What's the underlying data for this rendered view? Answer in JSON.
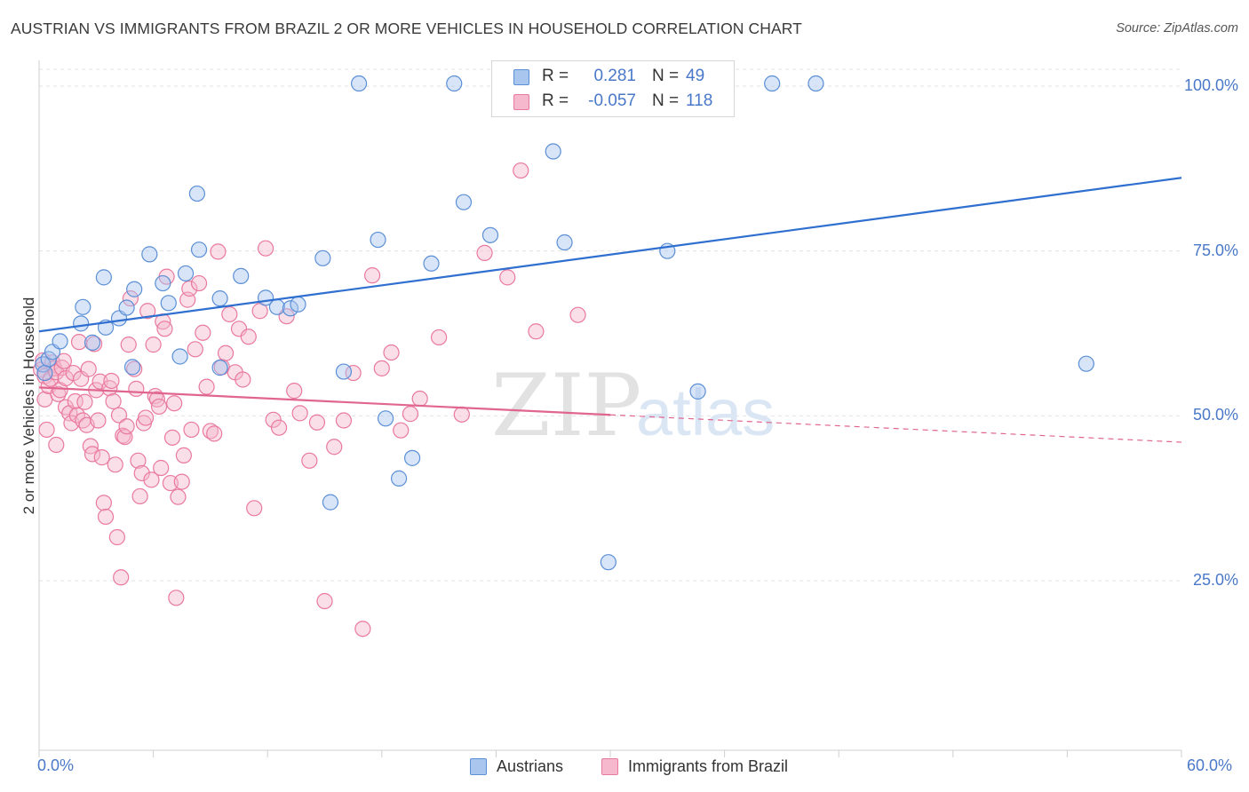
{
  "header": {
    "title": "AUSTRIAN VS IMMIGRANTS FROM BRAZIL 2 OR MORE VEHICLES IN HOUSEHOLD CORRELATION CHART",
    "source": "Source: ZipAtlas.com"
  },
  "watermark": {
    "zip": "ZIP",
    "atlas": "atlas"
  },
  "legend_top": {
    "rows": [
      {
        "r_label": "R =",
        "r_value": "0.281",
        "n_label": "N =",
        "n_value": "49"
      },
      {
        "r_label": "R =",
        "r_value": "-0.057",
        "n_label": "N =",
        "n_value": "118"
      }
    ]
  },
  "colors": {
    "austrians_fill": "#a9c6ef",
    "austrians_stroke": "#5b8fd6",
    "austrians_line": "#2f6fd0",
    "brazil_fill": "#f5b8cd",
    "brazil_stroke": "#e9799f",
    "brazil_line": "#e0668f",
    "tick_text": "#4a78c8",
    "grid": "#e3e3e3"
  },
  "chart_data": {
    "type": "scatter",
    "title": "AUSTRIAN VS IMMIGRANTS FROM BRAZIL 2 OR MORE VEHICLES IN HOUSEHOLD CORRELATION CHART",
    "xlabel": "",
    "ylabel": "2 or more Vehicles in Household",
    "xlim": [
      0,
      60
    ],
    "ylim": [
      0,
      105
    ],
    "x_tick_labels": [
      "0.0%",
      "60.0%"
    ],
    "y_ticks": [
      {
        "value": 100,
        "label": "100.0%"
      },
      {
        "value": 75,
        "label": "75.0%"
      },
      {
        "value": 50,
        "label": "50.0%"
      },
      {
        "value": 25,
        "label": "25.0%"
      }
    ],
    "grid": true,
    "legend_position": "bottom",
    "series": [
      {
        "name": "Austrians",
        "color": "#a9c6ef",
        "r": 0.281,
        "n": 49,
        "trend": {
          "x": [
            0,
            60
          ],
          "y": [
            62.8,
            86.1
          ],
          "dashed_from_x": null
        },
        "points": [
          [
            0.2,
            57.8
          ],
          [
            0.3,
            56.5
          ],
          [
            0.5,
            58.6
          ],
          [
            0.7,
            59.7
          ],
          [
            1.1,
            61.3
          ],
          [
            2.3,
            66.5
          ],
          [
            2.2,
            64.0
          ],
          [
            2.8,
            61.1
          ],
          [
            3.4,
            71.0
          ],
          [
            3.5,
            63.4
          ],
          [
            4.2,
            64.8
          ],
          [
            4.6,
            66.4
          ],
          [
            5.0,
            69.2
          ],
          [
            5.8,
            74.5
          ],
          [
            6.5,
            70.1
          ],
          [
            6.8,
            67.1
          ],
          [
            7.4,
            59.0
          ],
          [
            7.7,
            71.6
          ],
          [
            8.4,
            75.2
          ],
          [
            8.3,
            83.7
          ],
          [
            9.5,
            67.8
          ],
          [
            9.5,
            57.3
          ],
          [
            10.6,
            71.2
          ],
          [
            11.9,
            67.9
          ],
          [
            12.5,
            66.5
          ],
          [
            13.2,
            66.3
          ],
          [
            13.6,
            66.9
          ],
          [
            14.9,
            73.9
          ],
          [
            16.0,
            56.7
          ],
          [
            16.8,
            100.4
          ],
          [
            17.8,
            76.7
          ],
          [
            18.2,
            49.6
          ],
          [
            18.9,
            40.5
          ],
          [
            19.6,
            43.6
          ],
          [
            20.6,
            73.1
          ],
          [
            21.8,
            100.4
          ],
          [
            22.3,
            82.4
          ],
          [
            23.7,
            77.4
          ],
          [
            27.0,
            90.1
          ],
          [
            27.6,
            76.3
          ],
          [
            29.9,
            27.8
          ],
          [
            30.4,
            100.4
          ],
          [
            33.0,
            75.0
          ],
          [
            34.6,
            53.7
          ],
          [
            38.5,
            100.4
          ],
          [
            40.8,
            100.4
          ],
          [
            55.0,
            57.9
          ],
          [
            4.9,
            57.4
          ],
          [
            15.3,
            36.9
          ]
        ]
      },
      {
        "name": "Immigrants from Brazil",
        "color": "#f5b8cd",
        "r": -0.057,
        "n": 118,
        "trend": {
          "x": [
            0,
            60
          ],
          "y": [
            54.3,
            46.0
          ],
          "dashed_from_x": 30
        },
        "points": [
          [
            0.1,
            57.0
          ],
          [
            0.2,
            58.4
          ],
          [
            0.3,
            56.0
          ],
          [
            0.3,
            52.5
          ],
          [
            0.4,
            47.9
          ],
          [
            0.5,
            54.5
          ],
          [
            0.6,
            55.6
          ],
          [
            0.7,
            58.1
          ],
          [
            0.8,
            57.2
          ],
          [
            0.9,
            56.6
          ],
          [
            0.9,
            45.6
          ],
          [
            1.0,
            53.3
          ],
          [
            1.1,
            53.9
          ],
          [
            1.2,
            57.3
          ],
          [
            1.3,
            58.3
          ],
          [
            1.4,
            55.7
          ],
          [
            1.4,
            51.3
          ],
          [
            1.6,
            50.4
          ],
          [
            1.7,
            48.9
          ],
          [
            1.8,
            56.5
          ],
          [
            1.9,
            52.2
          ],
          [
            2.0,
            50.1
          ],
          [
            2.1,
            61.2
          ],
          [
            2.2,
            55.6
          ],
          [
            2.3,
            49.3
          ],
          [
            2.4,
            52.1
          ],
          [
            2.5,
            48.6
          ],
          [
            2.6,
            57.1
          ],
          [
            2.7,
            45.4
          ],
          [
            2.8,
            44.2
          ],
          [
            2.9,
            60.9
          ],
          [
            3.0,
            53.9
          ],
          [
            3.1,
            49.3
          ],
          [
            3.2,
            55.2
          ],
          [
            3.3,
            43.7
          ],
          [
            3.4,
            36.8
          ],
          [
            3.5,
            34.7
          ],
          [
            3.7,
            54.2
          ],
          [
            3.8,
            55.3
          ],
          [
            3.9,
            52.2
          ],
          [
            4.0,
            42.6
          ],
          [
            4.1,
            31.6
          ],
          [
            4.2,
            50.1
          ],
          [
            4.3,
            25.5
          ],
          [
            4.4,
            47.0
          ],
          [
            4.5,
            46.8
          ],
          [
            4.6,
            48.4
          ],
          [
            4.7,
            60.8
          ],
          [
            4.8,
            67.8
          ],
          [
            5.0,
            57.1
          ],
          [
            5.1,
            54.1
          ],
          [
            5.2,
            43.2
          ],
          [
            5.3,
            37.8
          ],
          [
            5.4,
            41.3
          ],
          [
            5.5,
            48.9
          ],
          [
            5.6,
            49.7
          ],
          [
            5.7,
            65.9
          ],
          [
            5.9,
            40.3
          ],
          [
            6.0,
            60.8
          ],
          [
            6.1,
            53.0
          ],
          [
            6.2,
            52.5
          ],
          [
            6.3,
            51.4
          ],
          [
            6.4,
            42.1
          ],
          [
            6.5,
            64.3
          ],
          [
            6.6,
            63.2
          ],
          [
            6.7,
            71.1
          ],
          [
            6.9,
            39.8
          ],
          [
            7.0,
            46.7
          ],
          [
            7.1,
            51.9
          ],
          [
            7.2,
            22.4
          ],
          [
            7.3,
            37.7
          ],
          [
            7.5,
            40.0
          ],
          [
            7.6,
            44.0
          ],
          [
            7.8,
            67.6
          ],
          [
            7.9,
            69.3
          ],
          [
            8.0,
            47.9
          ],
          [
            8.2,
            60.1
          ],
          [
            8.4,
            70.1
          ],
          [
            8.6,
            62.6
          ],
          [
            8.8,
            54.4
          ],
          [
            9.0,
            47.7
          ],
          [
            9.2,
            47.3
          ],
          [
            9.4,
            74.9
          ],
          [
            9.6,
            57.4
          ],
          [
            9.8,
            59.5
          ],
          [
            10.0,
            65.4
          ],
          [
            10.3,
            56.6
          ],
          [
            10.5,
            63.2
          ],
          [
            10.7,
            55.5
          ],
          [
            11.0,
            62.0
          ],
          [
            11.3,
            36.0
          ],
          [
            11.6,
            65.9
          ],
          [
            11.9,
            75.4
          ],
          [
            12.3,
            49.4
          ],
          [
            12.6,
            48.2
          ],
          [
            13.0,
            65.1
          ],
          [
            13.4,
            53.8
          ],
          [
            13.7,
            50.4
          ],
          [
            14.2,
            43.2
          ],
          [
            14.6,
            49.0
          ],
          [
            15.0,
            21.9
          ],
          [
            15.5,
            45.3
          ],
          [
            16.0,
            49.3
          ],
          [
            16.5,
            56.5
          ],
          [
            17.0,
            17.7
          ],
          [
            17.5,
            71.3
          ],
          [
            18.0,
            57.2
          ],
          [
            18.5,
            59.6
          ],
          [
            19.0,
            47.8
          ],
          [
            19.5,
            50.3
          ],
          [
            20.0,
            52.6
          ],
          [
            21.0,
            61.9
          ],
          [
            22.2,
            50.2
          ],
          [
            23.4,
            74.7
          ],
          [
            24.6,
            71.0
          ],
          [
            25.3,
            87.2
          ],
          [
            26.1,
            62.8
          ],
          [
            28.3,
            65.3
          ]
        ]
      }
    ]
  },
  "legend_bottom": {
    "items": [
      {
        "label": "Austrians"
      },
      {
        "label": "Immigrants from Brazil"
      }
    ]
  }
}
